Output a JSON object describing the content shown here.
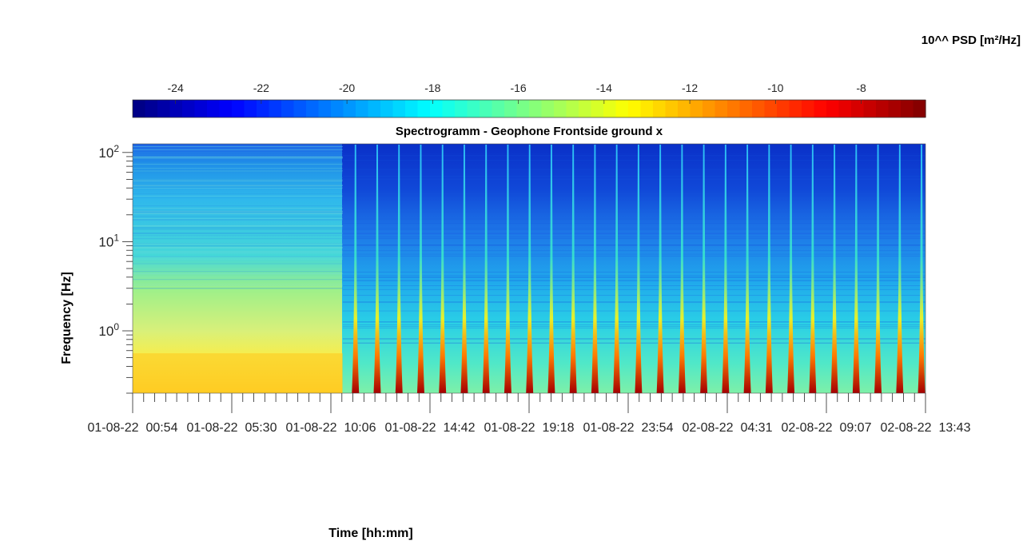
{
  "chart_data": {
    "type": "heatmap",
    "title": "Spectrogramm - Geophone Frontside ground x",
    "xlabel": "Time [hh:mm]",
    "ylabel": "Frequency [Hz]",
    "y_scale": "log",
    "ylim": [
      0.2,
      125
    ],
    "y_ticks": [
      {
        "base": "10",
        "exp": "0",
        "value": 1
      },
      {
        "base": "10",
        "exp": "1",
        "value": 10
      },
      {
        "base": "10",
        "exp": "2",
        "value": 100
      }
    ],
    "x_ticks": [
      "01-08-22  00:54",
      "01-08-22  05:30",
      "01-08-22  10:06",
      "01-08-22  14:42",
      "01-08-22  19:18",
      "01-08-22  23:54",
      "02-08-22  04:31",
      "02-08-22  09:07",
      "02-08-22  13:43"
    ],
    "colorbar": {
      "label": "10^^ PSD [m²/Hz]",
      "colormap": "jet",
      "range": [
        -25,
        -6.5
      ],
      "ticks": [
        "-24",
        "-22",
        "-20",
        "-18",
        "-16",
        "-14",
        "-12",
        "-10",
        "-8"
      ],
      "tick_values": [
        -24,
        -22,
        -20,
        -18,
        -16,
        -14,
        -12,
        -10,
        -8
      ]
    },
    "regime_change_fraction_of_time": 0.265,
    "pulse_count": 27,
    "grid": false
  }
}
